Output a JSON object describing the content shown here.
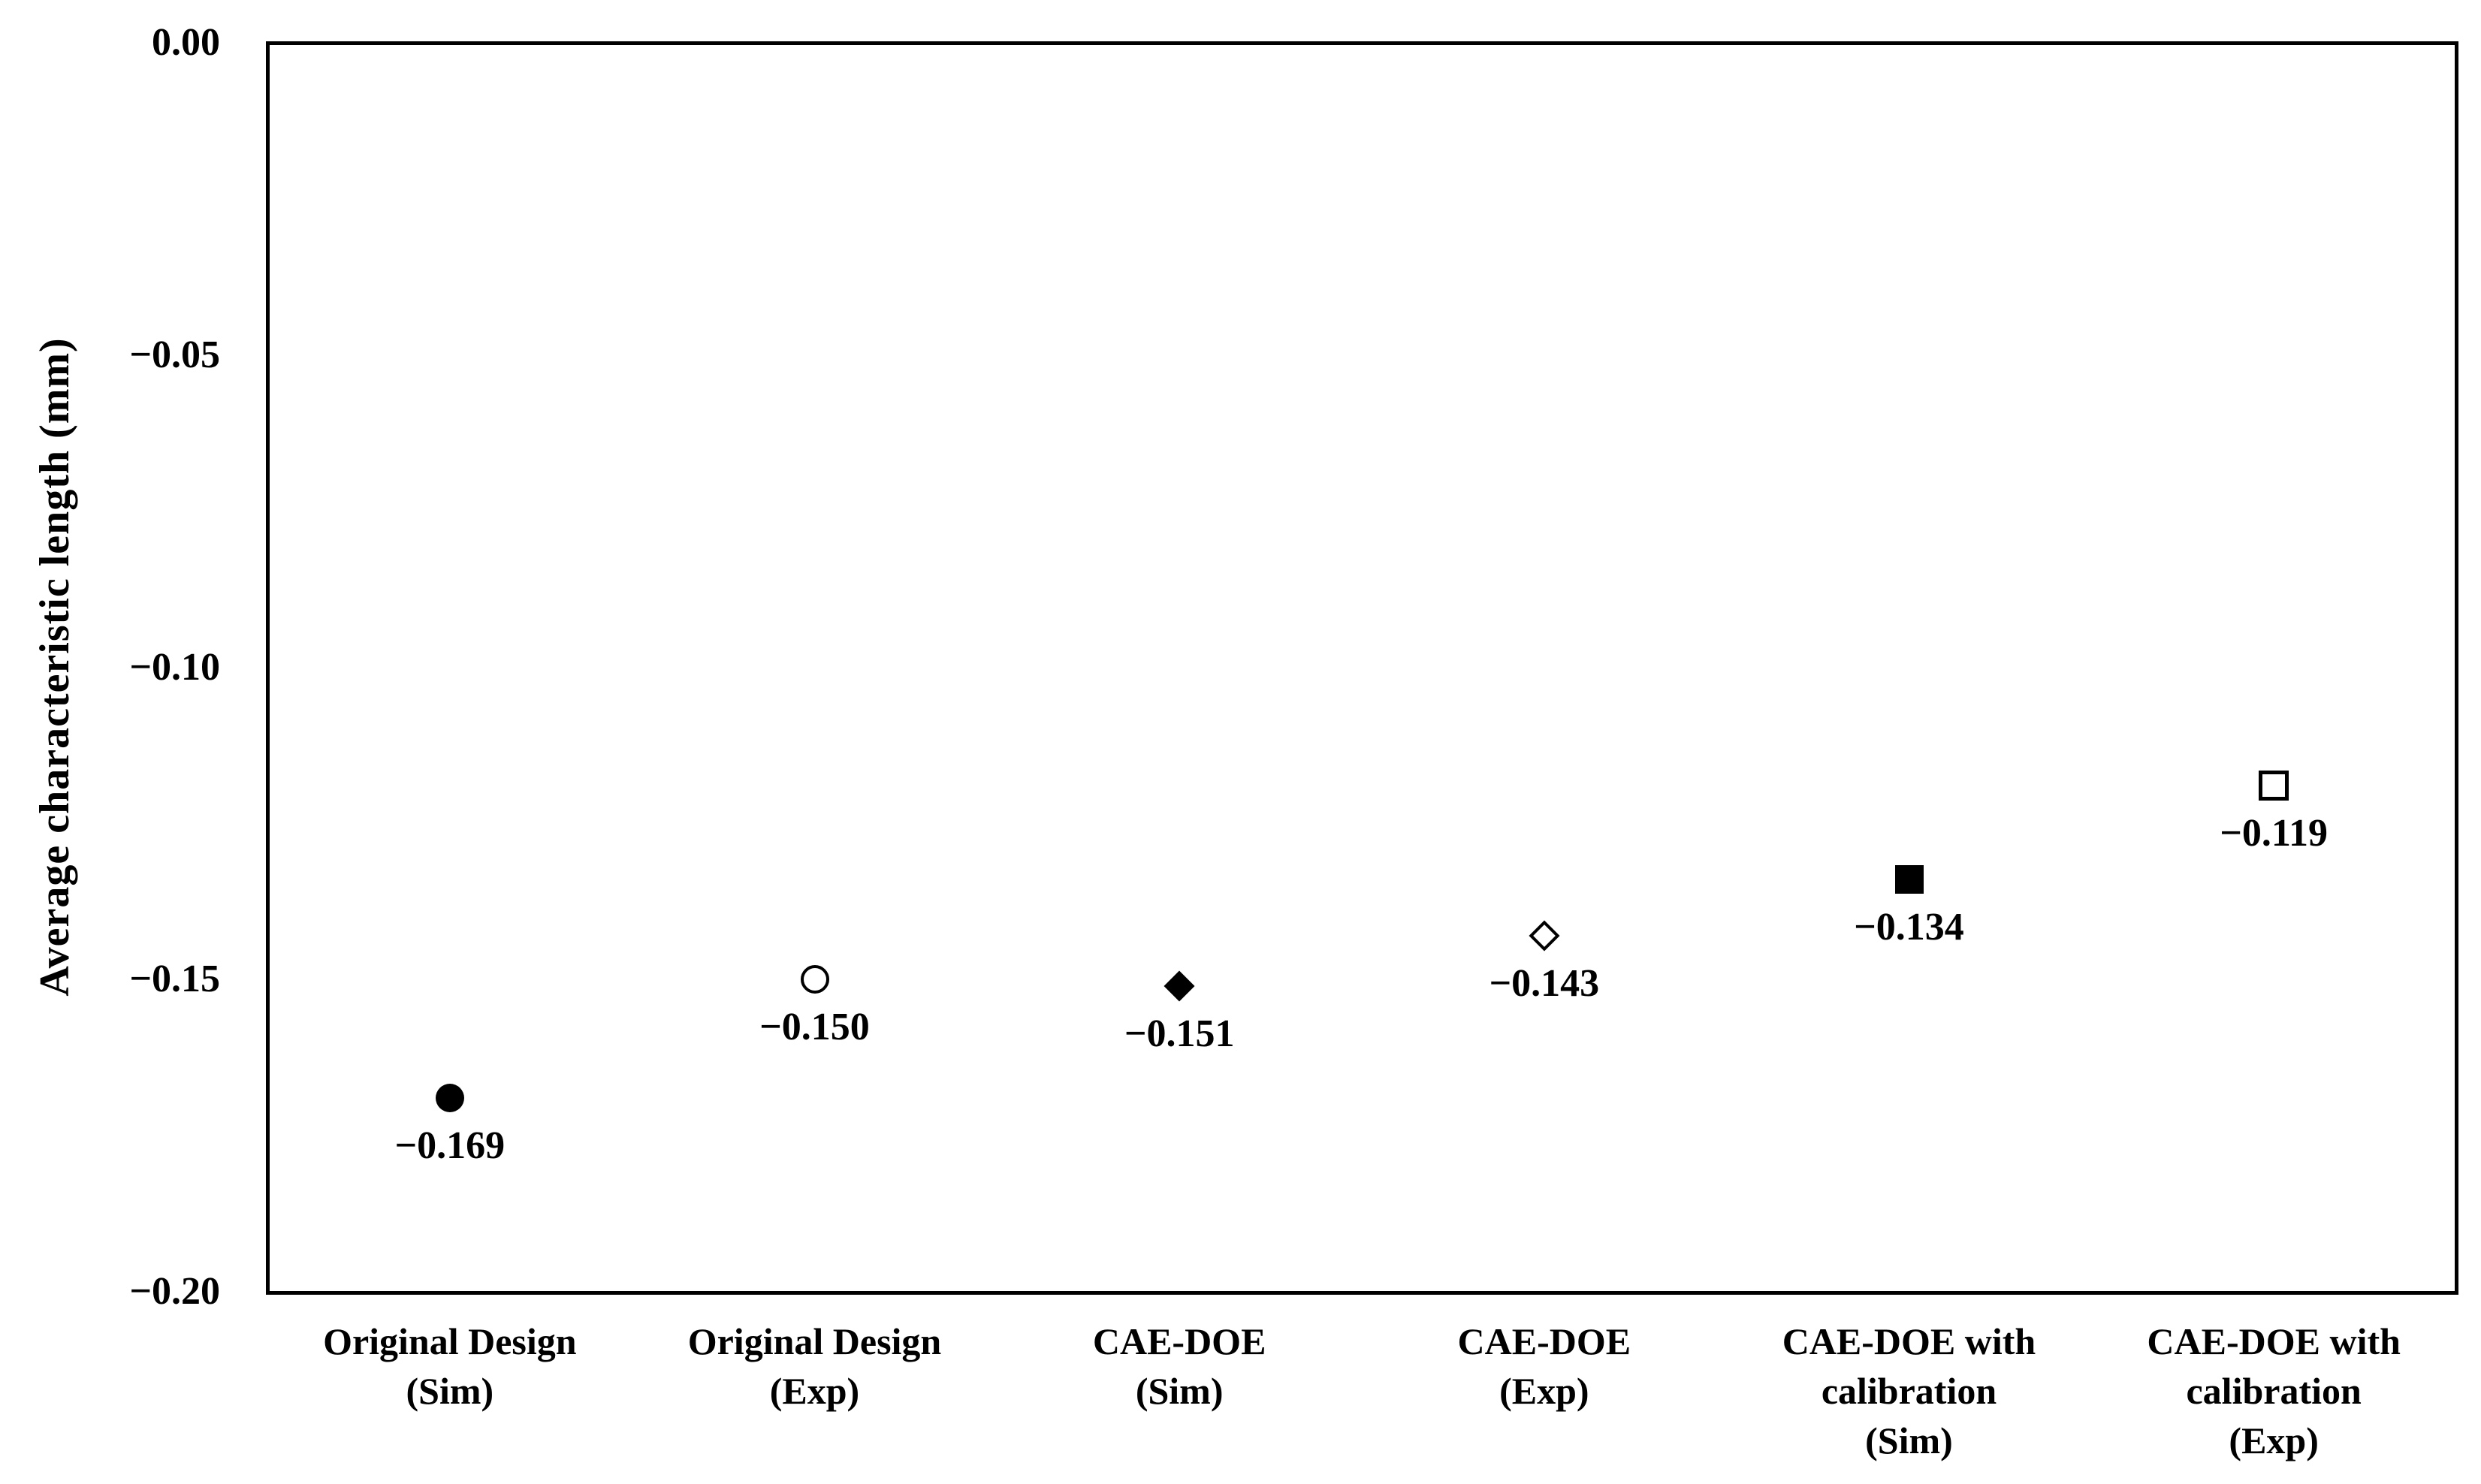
{
  "chart_data": {
    "type": "scatter",
    "title": "",
    "ylabel": "Average characteristic length (mm)",
    "xlabel": "",
    "ylim": [
      -0.2,
      0.0
    ],
    "grid": false,
    "legend": "none",
    "yticks": [
      {
        "label": "0.00",
        "value": 0.0
      },
      {
        "label": "−0.05",
        "value": -0.05
      },
      {
        "label": "−0.10",
        "value": -0.1
      },
      {
        "label": "−0.15",
        "value": -0.15
      },
      {
        "label": "−0.20",
        "value": -0.2
      }
    ],
    "points": [
      {
        "category_lines": [
          "Original Design",
          "(Sim)"
        ],
        "value": -0.169,
        "label": "−0.169",
        "marker": "filled-circle"
      },
      {
        "category_lines": [
          "Original Design",
          "(Exp)"
        ],
        "value": -0.15,
        "label": "−0.150",
        "marker": "open-circle"
      },
      {
        "category_lines": [
          "CAE-DOE",
          "(Sim)"
        ],
        "value": -0.151,
        "label": "−0.151",
        "marker": "filled-diamond"
      },
      {
        "category_lines": [
          "CAE-DOE",
          "(Exp)"
        ],
        "value": -0.143,
        "label": "−0.143",
        "marker": "open-diamond"
      },
      {
        "category_lines": [
          "CAE-DOE with",
          "calibration",
          "(Sim)"
        ],
        "value": -0.134,
        "label": "−0.134",
        "marker": "filled-square"
      },
      {
        "category_lines": [
          "CAE-DOE with",
          "calibration",
          "(Exp)"
        ],
        "value": -0.119,
        "label": "−0.119",
        "marker": "open-square"
      }
    ],
    "colors": {
      "marker": "#000000",
      "axis": "#000000",
      "text": "#000000",
      "background": "#ffffff"
    }
  }
}
